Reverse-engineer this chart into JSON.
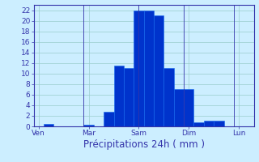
{
  "xlabel": "Précipitations 24h ( mm )",
  "background_color": "#cceeff",
  "bar_color": "#0033cc",
  "bar_edge_color": "#1166ee",
  "grid_color": "#99cccc",
  "ylim": [
    0,
    23
  ],
  "yticks": [
    0,
    2,
    4,
    6,
    8,
    10,
    12,
    14,
    16,
    18,
    20,
    22
  ],
  "day_labels": [
    "Ven",
    "Mar",
    "Sam",
    "Dim",
    "Lun"
  ],
  "day_positions": [
    0.5,
    5.5,
    10.5,
    15.5,
    20.5
  ],
  "xlim": [
    0,
    22
  ],
  "num_bars": 22,
  "bar_values": [
    0,
    0.4,
    0,
    0,
    0,
    0.3,
    0,
    2.8,
    11.5,
    11,
    22,
    22,
    21,
    11,
    7,
    7,
    0.8,
    1,
    1,
    0,
    0,
    0
  ],
  "xlabel_fontsize": 8.5,
  "tick_fontsize": 6.5,
  "label_fontsize": 6.5,
  "spine_color": "#3333aa",
  "tick_color": "#3333aa",
  "text_color": "#3333aa"
}
